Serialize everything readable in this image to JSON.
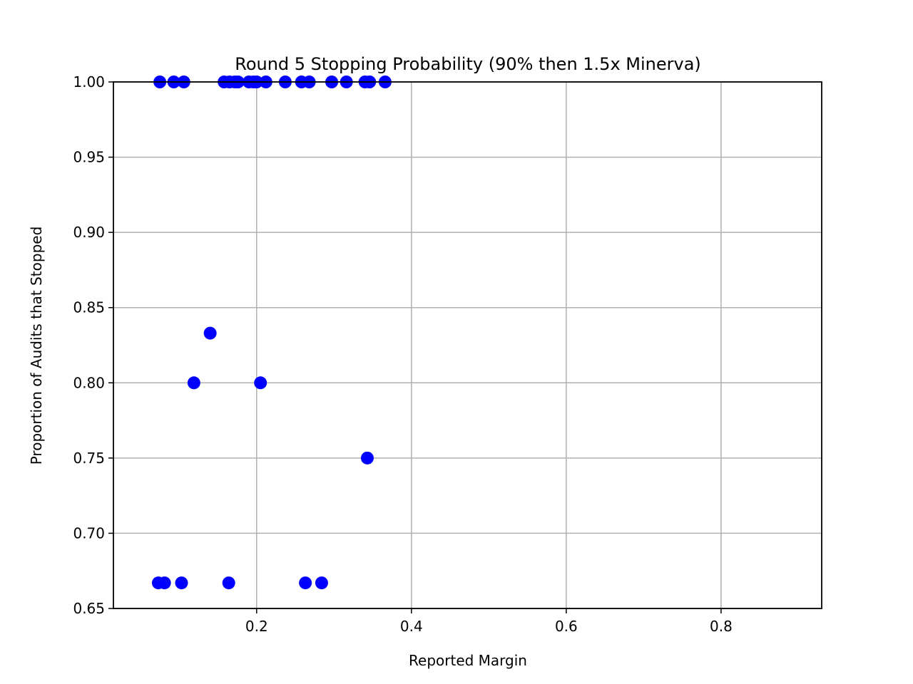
{
  "chart_data": {
    "type": "scatter",
    "title": "Round 5 Stopping Probability (90% then 1.5x Minerva)",
    "xlabel": "Reported Margin",
    "ylabel": "Proportion of Audits that Stopped",
    "xlim": [
      0.015,
      0.93
    ],
    "ylim": [
      0.65,
      1.0
    ],
    "xticks": [
      0.2,
      0.4,
      0.6,
      0.8
    ],
    "xtick_labels": [
      "0.2",
      "0.4",
      "0.6",
      "0.8"
    ],
    "yticks": [
      0.65,
      0.7,
      0.75,
      0.8,
      0.85,
      0.9,
      0.95,
      1.0
    ],
    "ytick_labels": [
      "0.65",
      "0.70",
      "0.75",
      "0.80",
      "0.85",
      "0.90",
      "0.95",
      "1.00"
    ],
    "grid": true,
    "marker_color": "#0000ff",
    "series": [
      {
        "x": [
          0.075,
          0.093,
          0.106,
          0.158,
          0.165,
          0.172,
          0.176,
          0.19,
          0.196,
          0.2,
          0.212,
          0.237,
          0.258,
          0.268,
          0.297,
          0.316,
          0.34,
          0.346,
          0.366,
          0.14,
          0.119,
          0.205,
          0.343,
          0.073,
          0.081,
          0.103,
          0.164,
          0.263,
          0.284
        ],
        "y": [
          1.0,
          1.0,
          1.0,
          1.0,
          1.0,
          1.0,
          1.0,
          1.0,
          1.0,
          1.0,
          1.0,
          1.0,
          1.0,
          1.0,
          1.0,
          1.0,
          1.0,
          1.0,
          1.0,
          0.833,
          0.8,
          0.8,
          0.75,
          0.667,
          0.667,
          0.667,
          0.667,
          0.667,
          0.667
        ]
      }
    ]
  }
}
